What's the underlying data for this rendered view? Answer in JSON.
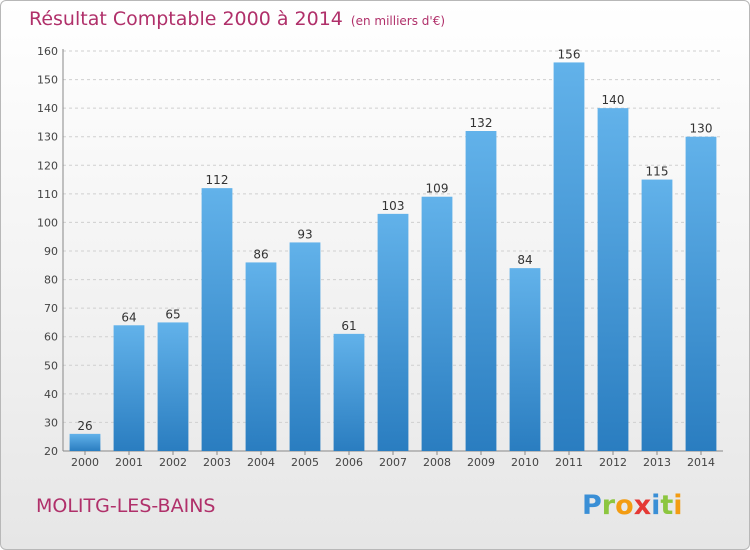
{
  "title": "Résultat Comptable 2000 à 2014",
  "subtitle": "(en milliers d'€)",
  "footer_label": "MOLITG-LES-BAINS",
  "logo": {
    "text": "Proxiti",
    "letters": [
      {
        "char": "P",
        "color": "#3a8fd6"
      },
      {
        "char": "r",
        "color": "#8cc63f"
      },
      {
        "char": "o",
        "color": "#f39c12"
      },
      {
        "char": "x",
        "color": "#e53935"
      },
      {
        "char": "i",
        "color": "#3a8fd6"
      },
      {
        "char": "t",
        "color": "#8cc63f"
      },
      {
        "char": "i",
        "color": "#f39c12"
      }
    ]
  },
  "colors": {
    "bar_top": "#62b2ea",
    "bar_bottom": "#2a7dc0",
    "title": "#b0306a",
    "grid": "#cfcfcf"
  },
  "chart_data": {
    "type": "bar",
    "title": "Résultat Comptable 2000 à 2014",
    "subtitle": "(en milliers d'€)",
    "xlabel": "",
    "ylabel": "",
    "categories": [
      "2000",
      "2001",
      "2002",
      "2003",
      "2004",
      "2005",
      "2006",
      "2007",
      "2008",
      "2009",
      "2010",
      "2011",
      "2012",
      "2013",
      "2014"
    ],
    "values": [
      26,
      64,
      65,
      112,
      86,
      93,
      61,
      103,
      109,
      132,
      84,
      156,
      140,
      115,
      130
    ],
    "ylim": [
      20,
      160
    ],
    "yticks": [
      20,
      30,
      40,
      50,
      60,
      70,
      80,
      90,
      100,
      110,
      120,
      130,
      140,
      150,
      160
    ],
    "grid": true,
    "legend": "none"
  }
}
